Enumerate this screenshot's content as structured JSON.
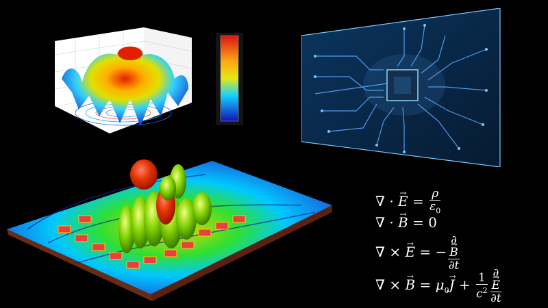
{
  "equations": {
    "gauss_e": {
      "lhs": "∇ · ",
      "field": "E",
      "eq": " = ",
      "num": "ρ",
      "den": "ε",
      "den_sub": "0"
    },
    "gauss_b": {
      "lhs": "∇ · ",
      "field": "B",
      "rhs": " = 0"
    },
    "faraday": {
      "lhs": "∇ × ",
      "field": "E",
      "eq": " = −",
      "num": "∂",
      "num_field": "B",
      "den": "∂t"
    },
    "ampere": {
      "lhs": "∇ × ",
      "field": "B",
      "eq": " = ",
      "mu": "μ",
      "mu_sub": "0",
      "j": "J",
      "plus": " + ",
      "num1": "1",
      "den1": "c",
      "den1_sup": "2",
      "num2": "∂",
      "num2_field": "E",
      "den2": "∂t"
    }
  },
  "colors": {
    "background": "#000000",
    "circuit_bg": "#0a2a4a",
    "circuit_trace": "#5aa8ff",
    "colorbar_top": "#d60000",
    "colorbar_bottom": "#0000b0"
  },
  "icons": [
    "3d-surface-plot-graphic",
    "circuit-board-graphic",
    "antenna-radiation-pattern-graphic"
  ]
}
